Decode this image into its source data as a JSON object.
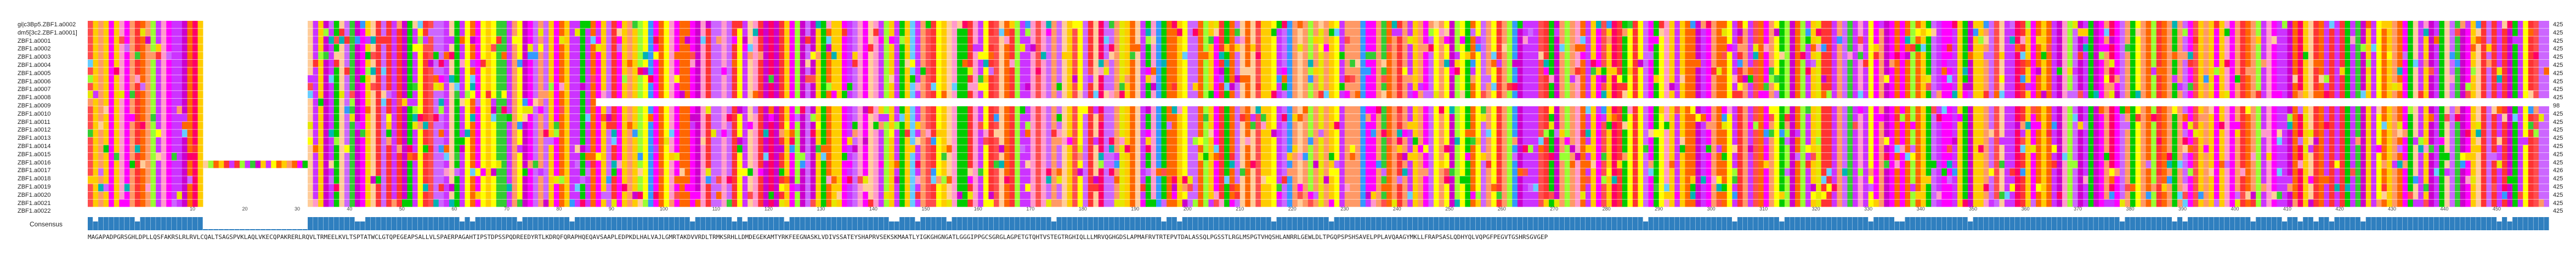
{
  "sequence_names": [
    "gi|c3Bp5.ZBF1.a0002",
    "dm5[3c2.ZBF1.a0001]",
    "ZBF1.a0001",
    "ZBF1.a0002",
    "ZBF1.a0003",
    "ZBF1.a0004",
    "ZBF1.a0005",
    "ZBF1.a0006",
    "ZBF1.a0007",
    "ZBF1.a0008",
    "ZBF1.a0009",
    "ZBF1.a0010",
    "ZBF1.a0011",
    "ZBF1.a0012",
    "ZBF1.a0013",
    "ZBF1.a0014",
    "ZBF1.a0015",
    "ZBF1.a0016",
    "ZBF1.a0017",
    "ZBF1.a0018",
    "ZBF1.a0019",
    "ZBF1.a0020",
    "ZBF1.a0021",
    "ZBF1.a0022"
  ],
  "sequence_counts": [
    "425",
    "425",
    "425",
    "425",
    "425",
    "425",
    "425",
    "425",
    "425",
    "425",
    "98",
    "425",
    "425",
    "425",
    "425",
    "425",
    "425",
    "425",
    "426",
    "425",
    "425",
    "425",
    "425",
    "425"
  ],
  "ruler_ticks": [
    "10",
    "20",
    "30",
    "40",
    "50",
    "60",
    "70",
    "80",
    "90",
    "100",
    "110",
    "120",
    "130",
    "140",
    "150",
    "160",
    "170",
    "180",
    "190",
    "200",
    "210",
    "220",
    "230",
    "240",
    "250",
    "260",
    "270",
    "280",
    "290",
    "300",
    "310",
    "320",
    "330",
    "340",
    "350",
    "360",
    "370",
    "380",
    "390",
    "400",
    "410",
    "420",
    "430",
    "440",
    "450"
  ],
  "consensus_label": "Consensus",
  "consensus_sequence": "MAGAPADPGRSGHLDPLLQSFAKRSLRLRVLCQALTSAGSPVKLAQLVKECQPAKRERLRQVLTRMEELKVLTSPTATWCLGTQPEGEAPSALLVLSPAERPAGAHTIPSTDPSSPQDREEDYRTLKDRQFQRAPHQEQAVSAAPLEDPKDLHALVAJLGMRTAKDVVRDLTRMKSRHLLDMDEGEKAMTYRKFEEGNASKLVDIVSSATEYSHAPRVSEKSKMAATLYIGKGHGNGATLGGGIPPGCSGRGLAGPETGTQHTVSTEGTRGHIQLLLMRVQGHGDSLAPMAFRVTRTEPVTDALASSQLPGSSTLRGLMSPGTVHQSHLANRRLGEWLDLTPGQPSPSHSAVELPPLAVQAAGYMKLLFRAPSASLQDHYQLVQPGFPEGVTGSHRSGVGEP",
  "colors": {
    "gap": "#ffffff",
    "consensus_bar": "#2f7fbf",
    "residue_palette": [
      "#ff00ff",
      "#cc00cc",
      "#ff3333",
      "#ff6600",
      "#ffff00",
      "#ffcc00",
      "#00cc00",
      "#33cc33",
      "#ff99cc",
      "#cc66ff",
      "#ff0066",
      "#ff9966",
      "#99ff33",
      "#3399ff",
      "#66ccff",
      "#ffcc99",
      "#cc33ff",
      "#ff4d4d",
      "#e6e600",
      "#00b3b3"
    ]
  }
}
